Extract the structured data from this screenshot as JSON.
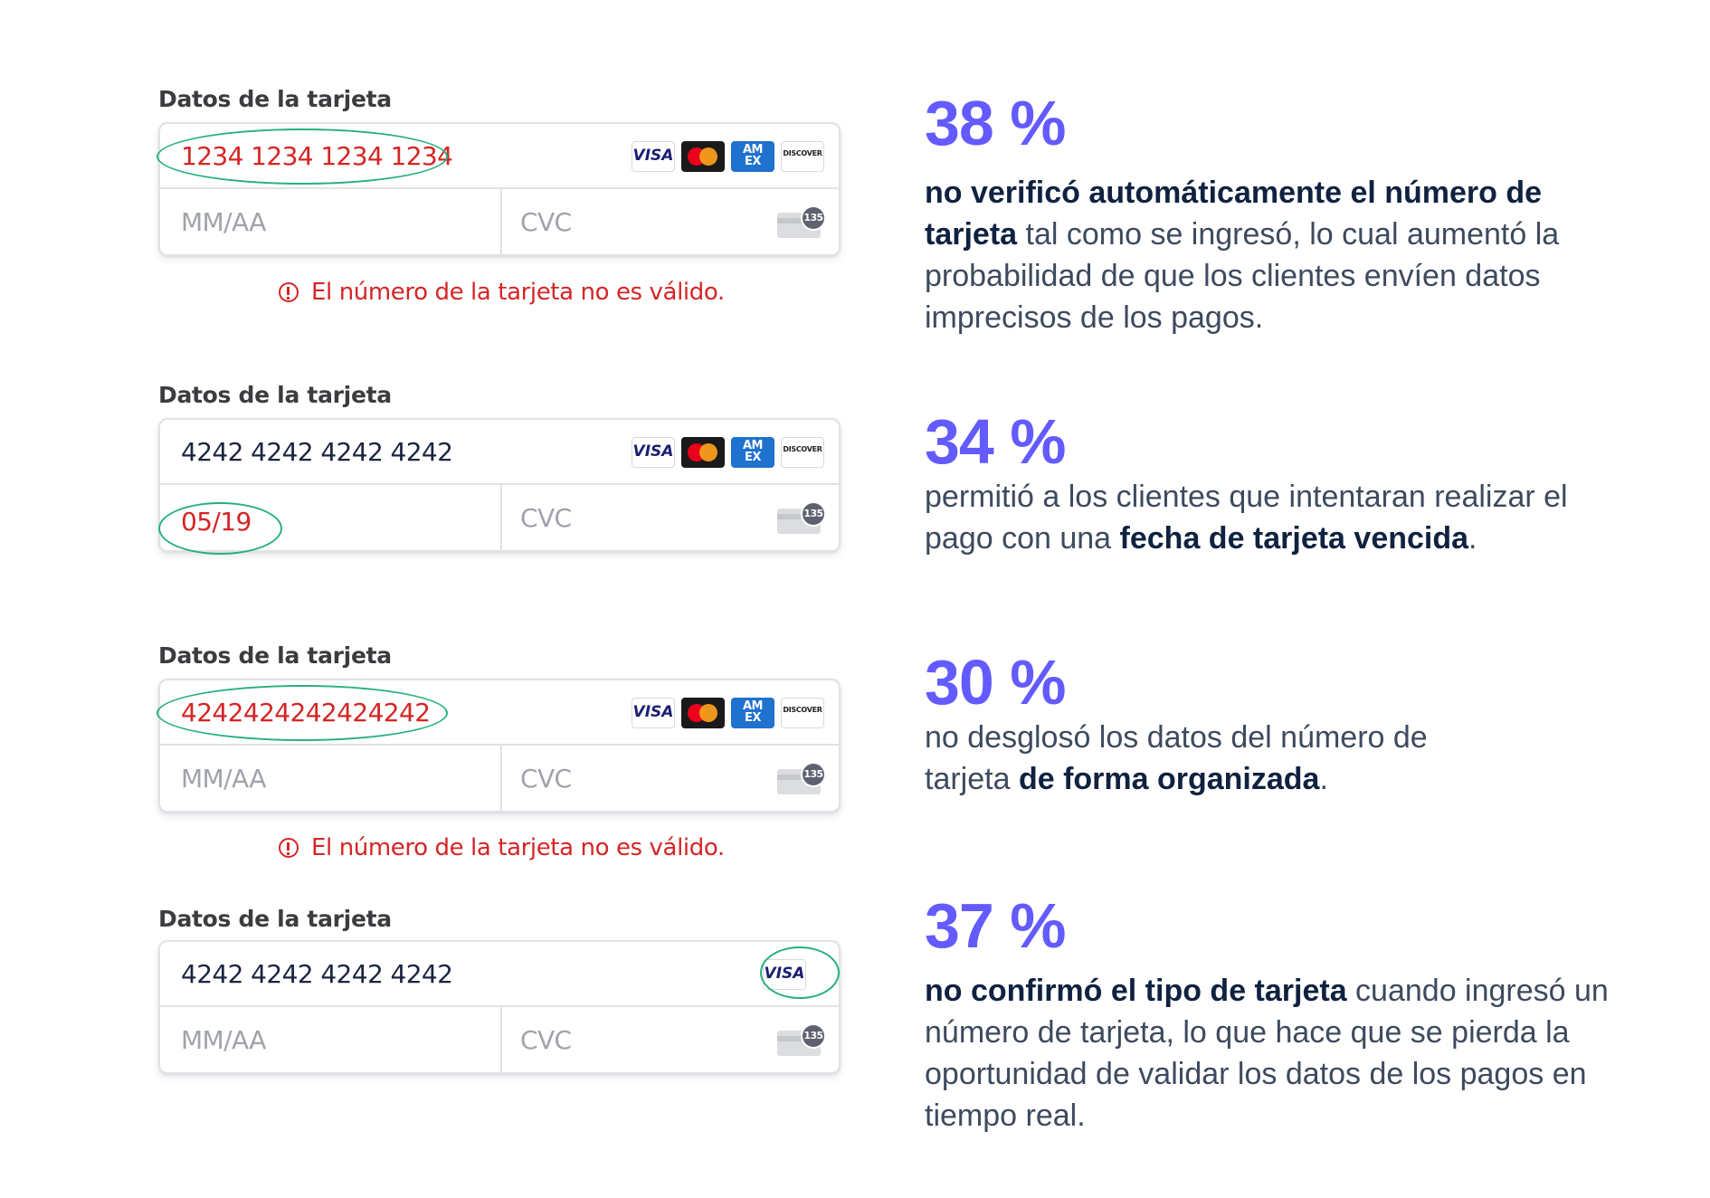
{
  "colors": {
    "accent": "#635bff",
    "error": "#d52525",
    "highlight": "#27b07a",
    "text_dark": "#0f2240"
  },
  "examples": [
    {
      "label": "Datos de la tarjeta",
      "number": "1234 1234 1234 1234",
      "expiry_placeholder": "MM/AA",
      "cvc_placeholder": "CVC",
      "cvc_badge": "135",
      "brands": [
        "VISA",
        "mastercard",
        "AMEX",
        "DISCOVER"
      ],
      "error": "El número de la tarjeta no es válido.",
      "stat": "38 %",
      "desc_bold": "no verificó automáticamente el número de tarjeta",
      "desc_rest": " tal como se ingresó, lo cual aumentó la probabilidad de que los clientes envíen datos imprecisos de los pagos."
    },
    {
      "label": "Datos de la tarjeta",
      "number": "4242 4242 4242 4242",
      "expiry": "05/19",
      "cvc_placeholder": "CVC",
      "cvc_badge": "135",
      "brands": [
        "VISA",
        "mastercard",
        "AMEX",
        "DISCOVER"
      ],
      "stat": "34 %",
      "desc_pre": "permitió a los clientes que intentaran realizar el pago con una ",
      "desc_bold": "fecha de tarjeta vencida",
      "desc_post": "."
    },
    {
      "label": "Datos de la tarjeta",
      "number": "4242424242424242",
      "expiry_placeholder": "MM/AA",
      "cvc_placeholder": "CVC",
      "cvc_badge": "135",
      "brands": [
        "VISA",
        "mastercard",
        "AMEX",
        "DISCOVER"
      ],
      "error": "El número de la tarjeta no es válido.",
      "stat": "30 %",
      "desc_pre": "no desglosó los datos del número de tarjeta ",
      "desc_bold": "de forma organizada",
      "desc_post": "."
    },
    {
      "label": "Datos de la tarjeta",
      "number": "4242 4242 4242 4242",
      "expiry_placeholder": "MM/AA",
      "cvc_placeholder": "CVC",
      "cvc_badge": "135",
      "brands": [
        "VISA"
      ],
      "stat": "37 %",
      "desc_bold": "no confirmó el tipo de tarjeta",
      "desc_rest": " cuando ingresó un número de tarjeta, lo que hace que se pierda la oportunidad de validar los datos de los pagos en tiempo real."
    }
  ]
}
